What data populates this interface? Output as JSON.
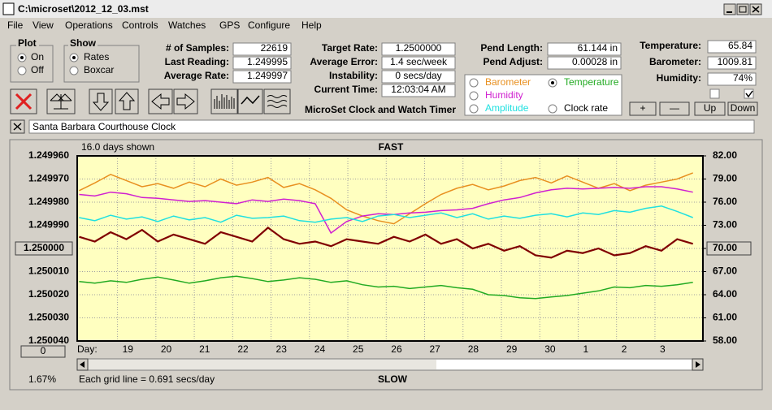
{
  "window": {
    "title": "C:\\microset\\2012_12_03.mst"
  },
  "menu": [
    "File",
    "View",
    "Operations",
    "Controls",
    "Watches",
    "GPS",
    "Configure",
    "Help"
  ],
  "plot_group": {
    "title": "Plot",
    "options": [
      "On",
      "Off"
    ]
  },
  "show_group": {
    "title": "Show",
    "options": [
      "Rates",
      "Boxcar"
    ]
  },
  "fields": [
    {
      "label": "# of Samples:",
      "value": "22619"
    },
    {
      "label": "Last Reading:",
      "value": "1.249995"
    },
    {
      "label": "Average Rate:",
      "value": "1.249997"
    },
    {
      "label": "Target Rate:",
      "value": "1.2500000"
    },
    {
      "label": "Average Error:",
      "value": "1.4 sec/week"
    },
    {
      "label": "Instability:",
      "value": "0 secs/day"
    },
    {
      "label": "Current Time:",
      "value": "12:03:04 AM"
    },
    {
      "label": "Pend Length:",
      "value": "61.144 in"
    },
    {
      "label": "Pend Adjust:",
      "value": "0.00028 in"
    },
    {
      "label": "Temperature:",
      "value": "65.84"
    },
    {
      "label": "Barometer:",
      "value": "1009.81"
    },
    {
      "label": "Humidity:",
      "value": "74%"
    }
  ],
  "app_title": "MicroSet Clock and Watch Timer",
  "clock_rate_option": "Clock rate",
  "buttons": [
    "+",
    "—",
    "Up",
    "Down"
  ],
  "clock_name": "Santa Barbara Courthouse Clock",
  "chart_data": {
    "type": "line",
    "title": "FAST",
    "bottom_label": "SLOW",
    "days_shown": "16.0 days shown",
    "x_label": "Day:",
    "scroll_value": "0",
    "zoom": "1.67%",
    "grid_note": "Each grid line = 0.691 secs/day",
    "grid": true,
    "x": [
      0,
      0.41,
      0.82,
      1.23,
      1.64,
      2.05,
      2.46,
      2.87,
      3.28,
      3.69,
      4.1,
      4.51,
      4.92,
      5.33,
      5.74,
      6.15,
      6.56,
      6.97,
      7.38,
      7.79,
      8.2,
      8.61,
      9.02,
      9.43,
      9.84,
      10.25,
      10.66,
      11.07,
      11.48,
      11.89,
      12.3,
      12.71,
      13.12,
      13.53,
      13.94,
      14.35,
      14.76,
      15.17,
      15.58,
      15.99
    ],
    "xlim": [
      -0.05,
      16.25
    ],
    "xticks": [
      {
        "value": 1,
        "label": "19"
      },
      {
        "value": 2,
        "label": "20"
      },
      {
        "value": 3,
        "label": "21"
      },
      {
        "value": 4,
        "label": "22"
      },
      {
        "value": 5,
        "label": "23"
      },
      {
        "value": 6,
        "label": "24"
      },
      {
        "value": 7,
        "label": "25"
      },
      {
        "value": 8,
        "label": "26"
      },
      {
        "value": 9,
        "label": "27"
      },
      {
        "value": 10,
        "label": "28"
      },
      {
        "value": 11,
        "label": "29"
      },
      {
        "value": 12,
        "label": "30"
      },
      {
        "value": 13,
        "label": "1"
      },
      {
        "value": 14,
        "label": "2"
      },
      {
        "value": 15,
        "label": "3"
      }
    ],
    "ylim": [
      1.25004,
      1.24996
    ],
    "yticks": [
      {
        "value": 1.24996,
        "label": "1.249960"
      },
      {
        "value": 1.24997,
        "label": "1.249970"
      },
      {
        "value": 1.24998,
        "label": "1.249980"
      },
      {
        "value": 1.24999,
        "label": "1.249990"
      },
      {
        "value": 1.25,
        "label": "1.250000"
      },
      {
        "value": 1.25001,
        "label": "1.250010"
      },
      {
        "value": 1.25002,
        "label": "1.250020"
      },
      {
        "value": 1.25003,
        "label": "1.250030"
      },
      {
        "value": 1.25004,
        "label": "1.250040"
      }
    ],
    "y2lim": [
      58,
      82
    ],
    "y2ticks": [
      {
        "value": 82,
        "label": "82.00"
      },
      {
        "value": 79,
        "label": "79.00"
      },
      {
        "value": 76,
        "label": "76.00"
      },
      {
        "value": 73,
        "label": "73.00"
      },
      {
        "value": 70,
        "label": "70.00"
      },
      {
        "value": 67,
        "label": "67.00"
      },
      {
        "value": 64,
        "label": "64.00"
      },
      {
        "value": 61,
        "label": "61.00"
      },
      {
        "value": 58,
        "label": "58.00"
      }
    ],
    "series": [
      {
        "name": "Barometer",
        "color": "#e89020",
        "axis": "y2",
        "values": [
          77.5,
          78.5,
          79.6,
          78.8,
          78.0,
          78.4,
          77.8,
          78.6,
          78.0,
          79.0,
          78.2,
          78.6,
          79.2,
          77.9,
          78.4,
          77.6,
          76.5,
          75.0,
          74.2,
          73.6,
          73.2,
          74.5,
          75.8,
          77.0,
          77.8,
          78.3,
          77.6,
          78.1,
          78.8,
          79.2,
          78.5,
          79.4,
          78.6,
          77.8,
          78.4,
          77.5,
          78.2,
          78.6,
          79.0,
          79.8
        ]
      },
      {
        "name": "Temperature",
        "color": "#22aa22",
        "axis": "y2",
        "values": [
          65.7,
          65.5,
          65.8,
          65.6,
          66.0,
          66.3,
          65.9,
          65.5,
          65.8,
          66.2,
          66.4,
          66.1,
          65.7,
          65.9,
          66.2,
          66.0,
          65.6,
          65.8,
          65.3,
          65.0,
          65.1,
          64.8,
          65.0,
          65.2,
          64.9,
          64.7,
          64.0,
          63.9,
          63.6,
          63.5,
          63.7,
          63.9,
          64.2,
          64.5,
          65.0,
          64.9,
          65.2,
          65.1,
          65.3,
          65.6
        ]
      },
      {
        "name": "Humidity",
        "color": "#d020d0",
        "axis": "y2",
        "values": [
          77.0,
          76.8,
          77.3,
          77.1,
          76.6,
          76.5,
          76.3,
          76.1,
          76.2,
          76.0,
          75.8,
          76.3,
          76.1,
          76.4,
          76.2,
          75.8,
          72.0,
          73.5,
          74.2,
          74.5,
          74.4,
          74.6,
          74.7,
          74.9,
          75.0,
          75.2,
          75.8,
          76.3,
          76.6,
          77.2,
          77.6,
          77.8,
          77.7,
          77.8,
          77.9,
          77.8,
          78.0,
          78.0,
          77.7,
          77.3
        ]
      },
      {
        "name": "Amplitude",
        "color": "#20e0e0",
        "axis": "y2",
        "values": [
          74.0,
          73.6,
          74.3,
          73.8,
          74.1,
          73.5,
          74.2,
          73.7,
          74.0,
          73.4,
          74.3,
          73.9,
          74.0,
          74.2,
          73.6,
          73.4,
          73.8,
          74.0,
          73.5,
          74.2,
          74.4,
          74.0,
          74.3,
          74.6,
          74.0,
          74.5,
          73.8,
          74.2,
          73.9,
          74.3,
          74.5,
          74.1,
          74.6,
          74.4,
          74.9,
          74.7,
          75.2,
          75.5,
          74.8,
          74.0
        ]
      },
      {
        "color": "#800000",
        "values": [
          1.249995,
          1.249997,
          1.249993,
          1.249996,
          1.249992,
          1.249997,
          1.249994,
          1.249996,
          1.249998,
          1.249993,
          1.249995,
          1.249997,
          1.249991,
          1.249996,
          1.249998,
          1.249997,
          1.249999,
          1.249996,
          1.249997,
          1.249998,
          1.249995,
          1.249997,
          1.249994,
          1.249998,
          1.249996,
          1.25,
          1.249998,
          1.250001,
          1.249999,
          1.250003,
          1.250004,
          1.250001,
          1.250002,
          1.25,
          1.250003,
          1.250002,
          1.249999,
          1.250001,
          1.249996,
          1.249998
        ]
      }
    ]
  }
}
